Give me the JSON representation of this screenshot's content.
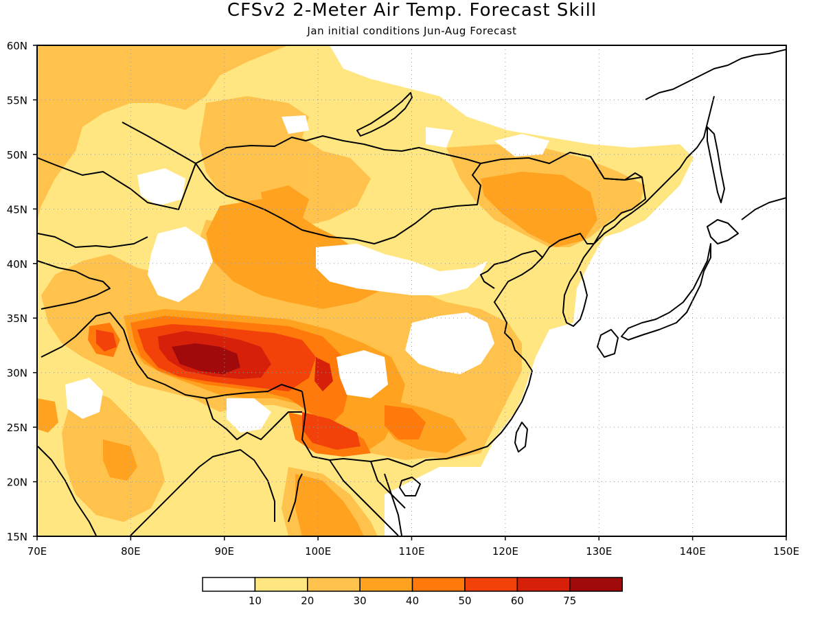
{
  "title": "CFSv2 2-Meter Air Temp. Forecast Skill",
  "subtitle": "Jan initial conditions  Jun-Aug Forecast",
  "map": {
    "lon_range": [
      70,
      150
    ],
    "lat_range": [
      15,
      60
    ],
    "lat_labels": [
      "60N",
      "55N",
      "50N",
      "45N",
      "40N",
      "35N",
      "30N",
      "25N",
      "20N",
      "15N"
    ],
    "lon_labels": [
      "70E",
      "80E",
      "90E",
      "100E",
      "110E",
      "120E",
      "130E",
      "140E",
      "150E"
    ],
    "gridlines": true
  },
  "legend": {
    "colors": [
      "#ffffff",
      "#ffe680",
      "#ffc24d",
      "#ffa21f",
      "#ff7a0a",
      "#f2420a",
      "#d6200a",
      "#a00a0a"
    ],
    "labels": [
      "10",
      "20",
      "30",
      "40",
      "50",
      "60",
      "75"
    ]
  }
}
